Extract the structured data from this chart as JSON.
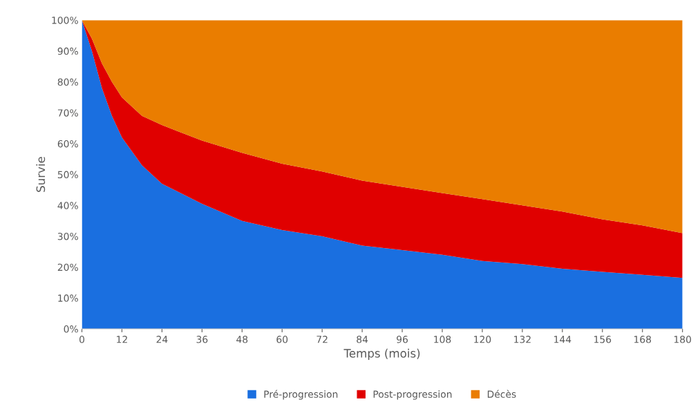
{
  "chart_data": {
    "type": "area",
    "stacked": true,
    "xlabel": "Temps (mois)",
    "ylabel": "Survie",
    "x": [
      0,
      3,
      6,
      9,
      12,
      18,
      24,
      36,
      48,
      60,
      72,
      84,
      96,
      108,
      120,
      132,
      144,
      156,
      168,
      180
    ],
    "series": [
      {
        "name": "Pré-progression",
        "color": "#1a6fe0",
        "values": [
          100,
          90,
          78,
          69,
          62,
          53,
          47,
          40.5,
          35,
          32,
          30,
          27,
          25.5,
          24,
          22,
          21,
          19.5,
          18.5,
          17.5,
          16.5
        ]
      },
      {
        "name": "Post-progression",
        "color": "#e00000",
        "values": [
          0,
          4,
          8,
          11,
          13,
          16,
          19,
          20.5,
          22,
          21.5,
          21,
          21,
          20.5,
          20,
          20,
          19,
          18.5,
          17,
          16,
          14.5
        ]
      },
      {
        "name": "Décès",
        "color": "#ea7d00",
        "values": [
          0,
          6,
          14,
          20,
          25,
          31,
          34,
          39,
          43,
          46.5,
          49,
          52,
          54,
          56,
          58,
          60,
          62,
          64.5,
          66.5,
          69
        ]
      }
    ],
    "xlim": [
      0,
      180
    ],
    "xticks": [
      0,
      12,
      24,
      36,
      48,
      60,
      72,
      84,
      96,
      108,
      120,
      132,
      144,
      156,
      168,
      180
    ],
    "ylim": [
      0,
      100
    ],
    "yticks": [
      {
        "value": 0,
        "label": "0%"
      },
      {
        "value": 10,
        "label": "10%"
      },
      {
        "value": 20,
        "label": "20%"
      },
      {
        "value": 30,
        "label": "30%"
      },
      {
        "value": 40,
        "label": "40%"
      },
      {
        "value": 50,
        "label": "50%"
      },
      {
        "value": 60,
        "label": "60%"
      },
      {
        "value": 70,
        "label": "70%"
      },
      {
        "value": 80,
        "label": "80%"
      },
      {
        "value": 90,
        "label": "90%"
      },
      {
        "value": 100,
        "label": "100%"
      }
    ],
    "grid": false,
    "legend": "bottom"
  }
}
